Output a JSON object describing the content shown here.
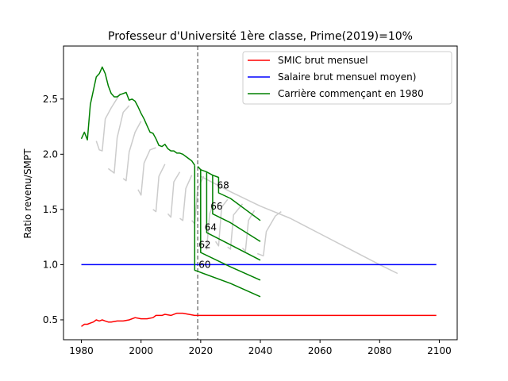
{
  "chart_data": {
    "type": "line",
    "title": "Professeur d'Université 1ère classe, Prime(2019)=10%",
    "xlabel": "",
    "ylabel": "Ratio revenu/SMPT",
    "xlim": [
      1974,
      2106
    ],
    "ylim": [
      0.32,
      2.98
    ],
    "xticks": [
      1980,
      2000,
      2020,
      2040,
      2060,
      2080,
      2100
    ],
    "yticks": [
      0.5,
      1.0,
      1.5,
      2.0,
      2.5
    ],
    "grid": false,
    "legend_position": "top-right",
    "vline": {
      "x": 2019,
      "style": "dashed",
      "color": "#808080"
    },
    "series": [
      {
        "name": "SMIC brut mensuel",
        "color": "#ff0000",
        "points": [
          [
            1980,
            0.44
          ],
          [
            1981,
            0.46
          ],
          [
            1982,
            0.46
          ],
          [
            1983,
            0.47
          ],
          [
            1984,
            0.48
          ],
          [
            1985,
            0.5
          ],
          [
            1986,
            0.49
          ],
          [
            1987,
            0.5
          ],
          [
            1988,
            0.49
          ],
          [
            1989,
            0.48
          ],
          [
            1990,
            0.48
          ],
          [
            1992,
            0.49
          ],
          [
            1994,
            0.49
          ],
          [
            1996,
            0.5
          ],
          [
            1998,
            0.52
          ],
          [
            2000,
            0.51
          ],
          [
            2002,
            0.51
          ],
          [
            2004,
            0.52
          ],
          [
            2005,
            0.54
          ],
          [
            2007,
            0.54
          ],
          [
            2008,
            0.55
          ],
          [
            2010,
            0.54
          ],
          [
            2012,
            0.56
          ],
          [
            2014,
            0.56
          ],
          [
            2016,
            0.55
          ],
          [
            2018,
            0.54
          ],
          [
            2020,
            0.54
          ],
          [
            2040,
            0.54
          ],
          [
            2060,
            0.54
          ],
          [
            2080,
            0.54
          ],
          [
            2099,
            0.54
          ]
        ]
      },
      {
        "name": "Salaire brut mensuel moyen)",
        "color": "#0000ff",
        "points": [
          [
            1980,
            1.0
          ],
          [
            2099,
            1.0
          ]
        ]
      },
      {
        "name": "Carrière commençant en 1980",
        "color": "#008000",
        "points": [
          [
            1980,
            2.14
          ],
          [
            1981,
            2.2
          ],
          [
            1982,
            2.13
          ],
          [
            1983,
            2.45
          ],
          [
            1985,
            2.7
          ],
          [
            1986,
            2.73
          ],
          [
            1987,
            2.79
          ],
          [
            1988,
            2.73
          ],
          [
            1989,
            2.62
          ],
          [
            1990,
            2.55
          ],
          [
            1991,
            2.52
          ],
          [
            1992,
            2.52
          ],
          [
            1993,
            2.54
          ],
          [
            1994,
            2.55
          ],
          [
            1995,
            2.56
          ],
          [
            1996,
            2.49
          ],
          [
            1997,
            2.5
          ],
          [
            1998,
            2.48
          ],
          [
            1999,
            2.43
          ],
          [
            2000,
            2.37
          ],
          [
            2001,
            2.32
          ],
          [
            2002,
            2.26
          ],
          [
            2003,
            2.2
          ],
          [
            2004,
            2.19
          ],
          [
            2005,
            2.14
          ],
          [
            2006,
            2.08
          ],
          [
            2007,
            2.07
          ],
          [
            2008,
            2.09
          ],
          [
            2009,
            2.05
          ],
          [
            2010,
            2.03
          ],
          [
            2011,
            2.03
          ],
          [
            2012,
            2.01
          ],
          [
            2013,
            2.01
          ],
          [
            2014,
            2.0
          ],
          [
            2015,
            1.98
          ],
          [
            2016,
            1.96
          ],
          [
            2017,
            1.94
          ],
          [
            2018,
            1.9
          ]
        ]
      }
    ],
    "scenario_lines": {
      "color": "#008000",
      "series": [
        {
          "label": "60",
          "label_at": [
            2019.3,
            0.97
          ],
          "points": [
            [
              2018,
              1.9
            ],
            [
              2018,
              0.95
            ],
            [
              2020,
              0.93
            ],
            [
              2030,
              0.83
            ],
            [
              2040,
              0.71
            ]
          ]
        },
        {
          "label": "62",
          "label_at": [
            2019.3,
            1.15
          ],
          "points": [
            [
              2019,
              1.89
            ],
            [
              2020,
              1.86
            ],
            [
              2020,
              1.11
            ],
            [
              2030,
              0.98
            ],
            [
              2040,
              0.86
            ]
          ]
        },
        {
          "label": "64",
          "label_at": [
            2021.3,
            1.31
          ],
          "points": [
            [
              2020,
              1.86
            ],
            [
              2022,
              1.84
            ],
            [
              2022,
              1.29
            ],
            [
              2030,
              1.18
            ],
            [
              2040,
              1.04
            ]
          ]
        },
        {
          "label": "66",
          "label_at": [
            2023.3,
            1.5
          ],
          "points": [
            [
              2022,
              1.84
            ],
            [
              2024,
              1.81
            ],
            [
              2024,
              1.46
            ],
            [
              2030,
              1.38
            ],
            [
              2040,
              1.21
            ]
          ]
        },
        {
          "label": "68",
          "label_at": [
            2025.5,
            1.69
          ],
          "points": [
            [
              2024,
              1.81
            ],
            [
              2026,
              1.79
            ],
            [
              2026,
              1.65
            ],
            [
              2030,
              1.6
            ],
            [
              2040,
              1.4
            ]
          ]
        }
      ]
    },
    "background_careers": {
      "color": "#cccccc",
      "curves": [
        [
          [
            1985,
            2.12
          ],
          [
            1986,
            2.04
          ],
          [
            1987,
            2.03
          ],
          [
            1988,
            2.32
          ],
          [
            1990,
            2.42
          ],
          [
            1993,
            2.55
          ]
        ],
        [
          [
            1989,
            1.87
          ],
          [
            1991,
            1.83
          ],
          [
            1992,
            2.15
          ],
          [
            1994,
            2.38
          ],
          [
            1996,
            2.44
          ]
        ],
        [
          [
            1994,
            1.78
          ],
          [
            1995,
            1.76
          ],
          [
            1996,
            2.02
          ],
          [
            1998,
            2.2
          ],
          [
            2000,
            2.3
          ]
        ],
        [
          [
            1999,
            1.68
          ],
          [
            2000,
            1.63
          ],
          [
            2001,
            1.92
          ],
          [
            2003,
            2.04
          ],
          [
            2005,
            2.06
          ]
        ],
        [
          [
            2004,
            1.5
          ],
          [
            2005,
            1.48
          ],
          [
            2006,
            1.8
          ],
          [
            2008,
            1.91
          ]
        ],
        [
          [
            2009,
            1.46
          ],
          [
            2010,
            1.43
          ],
          [
            2011,
            1.75
          ],
          [
            2013,
            1.84
          ]
        ],
        [
          [
            2013,
            1.42
          ],
          [
            2014,
            1.4
          ],
          [
            2015,
            1.69
          ],
          [
            2017,
            1.81
          ]
        ],
        [
          [
            2017,
            1.4
          ],
          [
            2018,
            1.37
          ],
          [
            2019,
            1.69
          ],
          [
            2021,
            1.8
          ]
        ],
        [
          [
            2021,
            1.19
          ],
          [
            2022,
            1.14
          ],
          [
            2023,
            1.46
          ],
          [
            2024,
            1.53
          ]
        ],
        [
          [
            2025,
            1.21
          ],
          [
            2026,
            1.17
          ],
          [
            2027,
            1.52
          ],
          [
            2029,
            1.59
          ]
        ],
        [
          [
            2029,
            1.16
          ],
          [
            2030,
            1.14
          ],
          [
            2031,
            1.45
          ],
          [
            2034,
            1.55
          ]
        ],
        [
          [
            2034,
            1.15
          ],
          [
            2035,
            1.12
          ],
          [
            2036,
            1.4
          ],
          [
            2038,
            1.49
          ]
        ],
        [
          [
            2039,
            1.1
          ],
          [
            2041,
            1.08
          ],
          [
            2042,
            1.3
          ],
          [
            2045,
            1.44
          ],
          [
            2047,
            1.48
          ]
        ],
        [
          [
            2020,
            1.8
          ],
          [
            2030,
            1.66
          ],
          [
            2040,
            1.53
          ],
          [
            2050,
            1.42
          ],
          [
            2060,
            1.28
          ],
          [
            2070,
            1.14
          ],
          [
            2080,
            1.0
          ],
          [
            2086,
            0.92
          ]
        ]
      ]
    }
  }
}
